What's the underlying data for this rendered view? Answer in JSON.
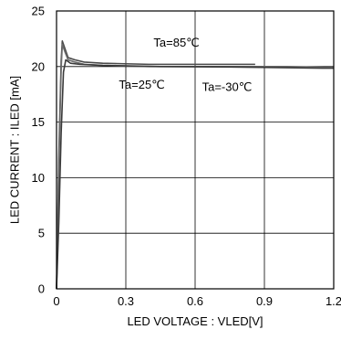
{
  "chart_data": {
    "type": "line",
    "xlabel": "LED VOLTAGE : VLED[V]",
    "ylabel": "LED CURRENT : ILED [mA]",
    "xlim": [
      0,
      1.2
    ],
    "ylim": [
      0,
      25
    ],
    "grid": true,
    "x_ticks": [
      0,
      0.3,
      0.6,
      0.9,
      1.2
    ],
    "x_tick_labels": [
      "0",
      "0.3",
      "0.6",
      "0.9",
      "1.2"
    ],
    "y_ticks": [
      0,
      5,
      10,
      15,
      20,
      25
    ],
    "y_tick_labels": [
      "0",
      "5",
      "10",
      "15",
      "20",
      "25"
    ],
    "colors": {
      "series": "#555555",
      "grid": "#000000",
      "axis": "#000000"
    },
    "series": [
      {
        "name": "Ta=85℃",
        "x": [
          0,
          0.01,
          0.02,
          0.025,
          0.035,
          0.05,
          0.08,
          0.12,
          0.2,
          0.4,
          0.6,
          0.86
        ],
        "y": [
          0,
          12.0,
          20.5,
          22.3,
          21.7,
          20.8,
          20.6,
          20.4,
          20.3,
          20.2,
          20.2,
          20.2
        ]
      },
      {
        "name": "Ta=25℃",
        "x": [
          0,
          0.01,
          0.02,
          0.025,
          0.035,
          0.05,
          0.08,
          0.12,
          0.2,
          0.4,
          0.7,
          1.0,
          1.2
        ],
        "y": [
          0,
          11.0,
          19.8,
          22.0,
          21.4,
          20.6,
          20.4,
          20.2,
          20.1,
          20.0,
          20.0,
          20.0,
          19.9
        ]
      },
      {
        "name": "Ta=-30℃",
        "x": [
          0,
          0.01,
          0.02,
          0.03,
          0.04,
          0.06,
          0.1,
          0.2,
          0.45,
          0.8,
          1.15,
          1.2
        ],
        "y": [
          0,
          6.0,
          14.0,
          19.5,
          20.6,
          20.3,
          20.2,
          20.1,
          20.0,
          19.95,
          19.85,
          19.85
        ]
      }
    ],
    "annotations": [
      {
        "text": "Ta=85℃",
        "x": 0.42,
        "y": 21.8
      },
      {
        "text": "Ta=25℃",
        "x": 0.27,
        "y": 18.0
      },
      {
        "text": "Ta=-30℃",
        "x": 0.63,
        "y": 17.8
      }
    ]
  }
}
